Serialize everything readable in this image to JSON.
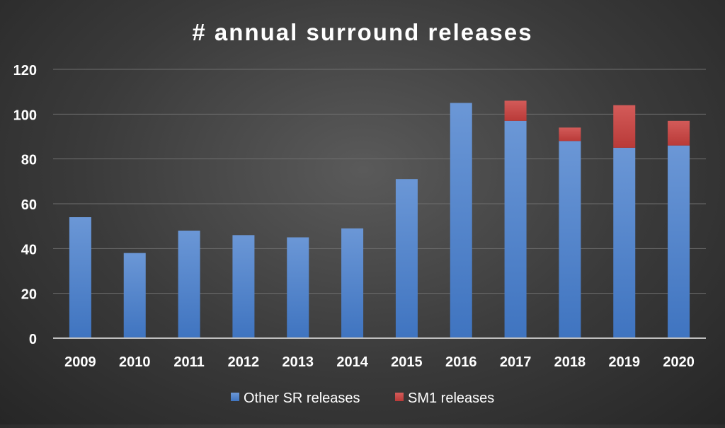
{
  "chart_data": {
    "type": "bar",
    "stacked": true,
    "title": "# annual surround releases",
    "categories": [
      "2009",
      "2010",
      "2011",
      "2012",
      "2013",
      "2014",
      "2015",
      "2016",
      "2017",
      "2018",
      "2019",
      "2020"
    ],
    "series": [
      {
        "name": "Other SR releases",
        "values": [
          54,
          38,
          48,
          46,
          45,
          49,
          71,
          105,
          97,
          88,
          85,
          86
        ],
        "color": "#4a7fca"
      },
      {
        "name": "SM1 releases",
        "values": [
          0,
          0,
          0,
          0,
          0,
          0,
          0,
          0,
          9,
          6,
          19,
          11
        ],
        "color": "#c94442"
      }
    ],
    "ylim": [
      0,
      120
    ],
    "yticks": [
      0,
      20,
      40,
      60,
      80,
      100,
      120
    ],
    "grid": true,
    "legend": "bottom",
    "colors": {
      "text": "#ffffff",
      "grid": "#6e6e6e",
      "axis": "#bfbfbf"
    }
  }
}
